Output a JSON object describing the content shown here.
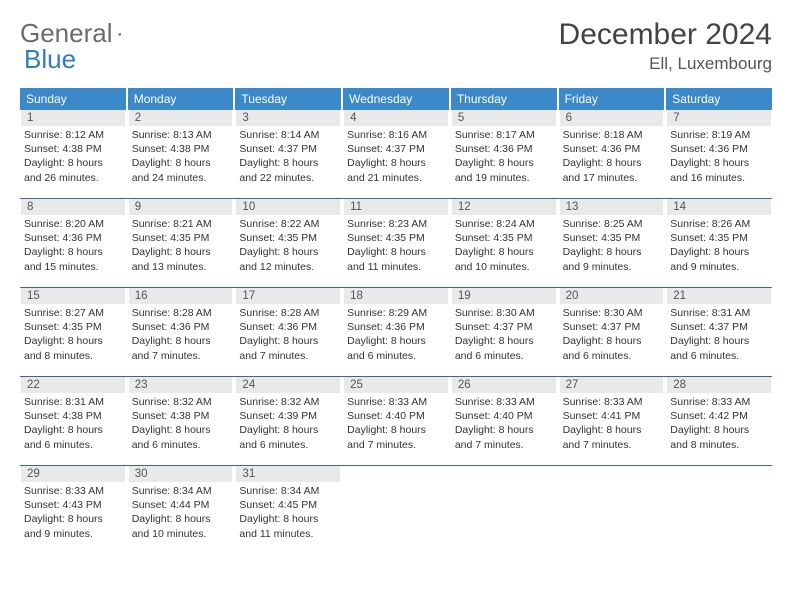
{
  "logo": {
    "word1": "General",
    "word2": "Blue"
  },
  "header": {
    "month_title": "December 2024",
    "location": "Ell, Luxembourg"
  },
  "colors": {
    "header_bg": "#3b89c9",
    "header_text": "#ffffff",
    "daynum_bg": "#e9e9e9",
    "daynum_text": "#555555",
    "divider": "#3b6699",
    "logo_gray": "#6b6b6b",
    "logo_blue": "#2b7ec4"
  },
  "weekdays": [
    "Sunday",
    "Monday",
    "Tuesday",
    "Wednesday",
    "Thursday",
    "Friday",
    "Saturday"
  ],
  "weeks": [
    [
      {
        "n": "1",
        "sr": "Sunrise: 8:12 AM",
        "ss": "Sunset: 4:38 PM",
        "d1": "Daylight: 8 hours",
        "d2": "and 26 minutes."
      },
      {
        "n": "2",
        "sr": "Sunrise: 8:13 AM",
        "ss": "Sunset: 4:38 PM",
        "d1": "Daylight: 8 hours",
        "d2": "and 24 minutes."
      },
      {
        "n": "3",
        "sr": "Sunrise: 8:14 AM",
        "ss": "Sunset: 4:37 PM",
        "d1": "Daylight: 8 hours",
        "d2": "and 22 minutes."
      },
      {
        "n": "4",
        "sr": "Sunrise: 8:16 AM",
        "ss": "Sunset: 4:37 PM",
        "d1": "Daylight: 8 hours",
        "d2": "and 21 minutes."
      },
      {
        "n": "5",
        "sr": "Sunrise: 8:17 AM",
        "ss": "Sunset: 4:36 PM",
        "d1": "Daylight: 8 hours",
        "d2": "and 19 minutes."
      },
      {
        "n": "6",
        "sr": "Sunrise: 8:18 AM",
        "ss": "Sunset: 4:36 PM",
        "d1": "Daylight: 8 hours",
        "d2": "and 17 minutes."
      },
      {
        "n": "7",
        "sr": "Sunrise: 8:19 AM",
        "ss": "Sunset: 4:36 PM",
        "d1": "Daylight: 8 hours",
        "d2": "and 16 minutes."
      }
    ],
    [
      {
        "n": "8",
        "sr": "Sunrise: 8:20 AM",
        "ss": "Sunset: 4:36 PM",
        "d1": "Daylight: 8 hours",
        "d2": "and 15 minutes."
      },
      {
        "n": "9",
        "sr": "Sunrise: 8:21 AM",
        "ss": "Sunset: 4:35 PM",
        "d1": "Daylight: 8 hours",
        "d2": "and 13 minutes."
      },
      {
        "n": "10",
        "sr": "Sunrise: 8:22 AM",
        "ss": "Sunset: 4:35 PM",
        "d1": "Daylight: 8 hours",
        "d2": "and 12 minutes."
      },
      {
        "n": "11",
        "sr": "Sunrise: 8:23 AM",
        "ss": "Sunset: 4:35 PM",
        "d1": "Daylight: 8 hours",
        "d2": "and 11 minutes."
      },
      {
        "n": "12",
        "sr": "Sunrise: 8:24 AM",
        "ss": "Sunset: 4:35 PM",
        "d1": "Daylight: 8 hours",
        "d2": "and 10 minutes."
      },
      {
        "n": "13",
        "sr": "Sunrise: 8:25 AM",
        "ss": "Sunset: 4:35 PM",
        "d1": "Daylight: 8 hours",
        "d2": "and 9 minutes."
      },
      {
        "n": "14",
        "sr": "Sunrise: 8:26 AM",
        "ss": "Sunset: 4:35 PM",
        "d1": "Daylight: 8 hours",
        "d2": "and 9 minutes."
      }
    ],
    [
      {
        "n": "15",
        "sr": "Sunrise: 8:27 AM",
        "ss": "Sunset: 4:35 PM",
        "d1": "Daylight: 8 hours",
        "d2": "and 8 minutes."
      },
      {
        "n": "16",
        "sr": "Sunrise: 8:28 AM",
        "ss": "Sunset: 4:36 PM",
        "d1": "Daylight: 8 hours",
        "d2": "and 7 minutes."
      },
      {
        "n": "17",
        "sr": "Sunrise: 8:28 AM",
        "ss": "Sunset: 4:36 PM",
        "d1": "Daylight: 8 hours",
        "d2": "and 7 minutes."
      },
      {
        "n": "18",
        "sr": "Sunrise: 8:29 AM",
        "ss": "Sunset: 4:36 PM",
        "d1": "Daylight: 8 hours",
        "d2": "and 6 minutes."
      },
      {
        "n": "19",
        "sr": "Sunrise: 8:30 AM",
        "ss": "Sunset: 4:37 PM",
        "d1": "Daylight: 8 hours",
        "d2": "and 6 minutes."
      },
      {
        "n": "20",
        "sr": "Sunrise: 8:30 AM",
        "ss": "Sunset: 4:37 PM",
        "d1": "Daylight: 8 hours",
        "d2": "and 6 minutes."
      },
      {
        "n": "21",
        "sr": "Sunrise: 8:31 AM",
        "ss": "Sunset: 4:37 PM",
        "d1": "Daylight: 8 hours",
        "d2": "and 6 minutes."
      }
    ],
    [
      {
        "n": "22",
        "sr": "Sunrise: 8:31 AM",
        "ss": "Sunset: 4:38 PM",
        "d1": "Daylight: 8 hours",
        "d2": "and 6 minutes."
      },
      {
        "n": "23",
        "sr": "Sunrise: 8:32 AM",
        "ss": "Sunset: 4:38 PM",
        "d1": "Daylight: 8 hours",
        "d2": "and 6 minutes."
      },
      {
        "n": "24",
        "sr": "Sunrise: 8:32 AM",
        "ss": "Sunset: 4:39 PM",
        "d1": "Daylight: 8 hours",
        "d2": "and 6 minutes."
      },
      {
        "n": "25",
        "sr": "Sunrise: 8:33 AM",
        "ss": "Sunset: 4:40 PM",
        "d1": "Daylight: 8 hours",
        "d2": "and 7 minutes."
      },
      {
        "n": "26",
        "sr": "Sunrise: 8:33 AM",
        "ss": "Sunset: 4:40 PM",
        "d1": "Daylight: 8 hours",
        "d2": "and 7 minutes."
      },
      {
        "n": "27",
        "sr": "Sunrise: 8:33 AM",
        "ss": "Sunset: 4:41 PM",
        "d1": "Daylight: 8 hours",
        "d2": "and 7 minutes."
      },
      {
        "n": "28",
        "sr": "Sunrise: 8:33 AM",
        "ss": "Sunset: 4:42 PM",
        "d1": "Daylight: 8 hours",
        "d2": "and 8 minutes."
      }
    ],
    [
      {
        "n": "29",
        "sr": "Sunrise: 8:33 AM",
        "ss": "Sunset: 4:43 PM",
        "d1": "Daylight: 8 hours",
        "d2": "and 9 minutes."
      },
      {
        "n": "30",
        "sr": "Sunrise: 8:34 AM",
        "ss": "Sunset: 4:44 PM",
        "d1": "Daylight: 8 hours",
        "d2": "and 10 minutes."
      },
      {
        "n": "31",
        "sr": "Sunrise: 8:34 AM",
        "ss": "Sunset: 4:45 PM",
        "d1": "Daylight: 8 hours",
        "d2": "and 11 minutes."
      },
      null,
      null,
      null,
      null
    ]
  ]
}
